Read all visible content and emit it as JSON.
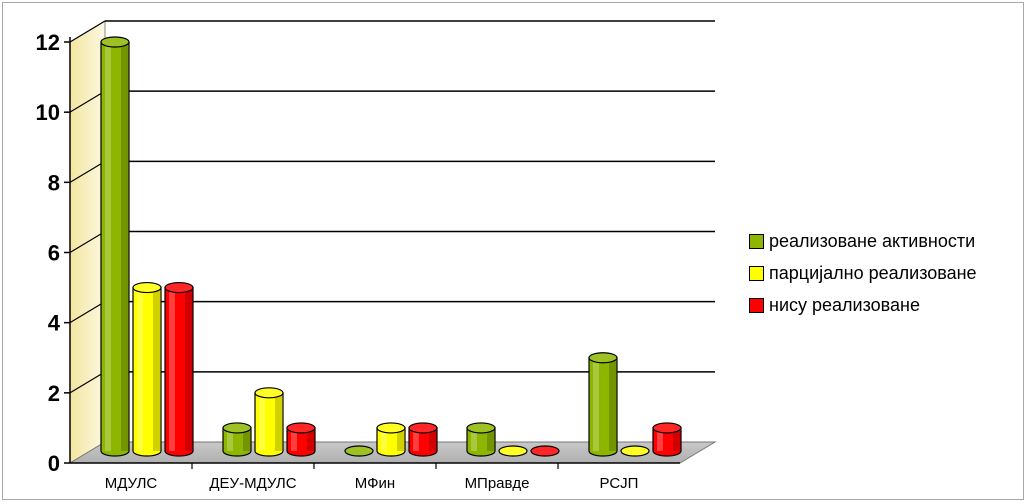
{
  "chart_data": {
    "type": "bar",
    "categories": [
      "МДУЛС",
      "ДЕУ-МДУЛС",
      "МФин",
      "МПравде",
      "РСЈП"
    ],
    "series": [
      {
        "name": "реализоване активности",
        "color": "#8db600",
        "values": [
          12,
          1,
          0,
          1,
          3
        ]
      },
      {
        "name": "парцијално реализоване",
        "color": "#ffff00",
        "values": [
          5,
          2,
          1,
          0,
          0
        ]
      },
      {
        "name": "нису реализоване",
        "color": "#ff0000",
        "values": [
          5,
          1,
          1,
          0,
          1
        ]
      }
    ],
    "ylim": [
      0,
      12
    ],
    "yticks": [
      "0",
      "2",
      "4",
      "6",
      "8",
      "10",
      "12"
    ],
    "grid": true,
    "legend_position": "right",
    "xlabel": "",
    "ylabel": "",
    "title": ""
  }
}
